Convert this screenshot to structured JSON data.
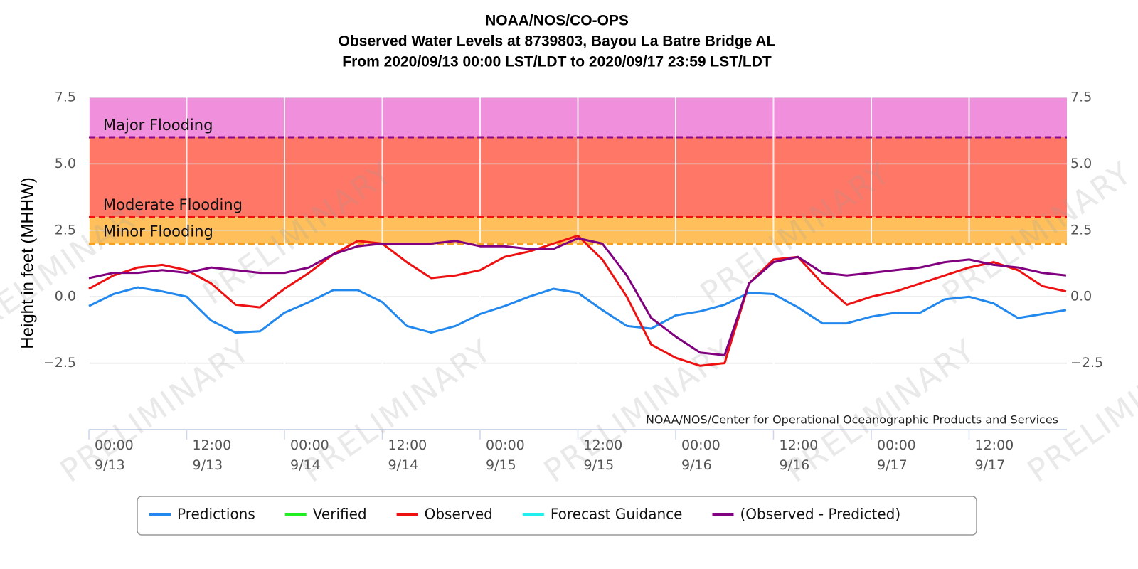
{
  "chart_data": {
    "type": "line",
    "title": [
      "NOAA/NOS/CO-OPS",
      "Observed Water Levels at 8739803, Bayou La Batre Bridge AL",
      "From 2020/09/13 00:00 LST/LDT to 2020/09/17 23:59 LST/LDT"
    ],
    "y_label": "Height in feet (MHHW)",
    "credit": "NOAA/NOS/Center for Operational Oceanographic Products and Services",
    "watermark": "PRELIMINARY",
    "xlim": [
      "2020-09-13 00:00",
      "2020-09-18 00:00"
    ],
    "xticks": [
      {
        "value": "2020-09-13 00:00",
        "label": "00:00 9/13"
      },
      {
        "value": "2020-09-13 12:00",
        "label": "12:00 9/13"
      },
      {
        "value": "2020-09-14 00:00",
        "label": "00:00 9/14"
      },
      {
        "value": "2020-09-14 12:00",
        "label": "12:00 9/14"
      },
      {
        "value": "2020-09-15 00:00",
        "label": "00:00 9/15"
      },
      {
        "value": "2020-09-15 12:00",
        "label": "12:00 9/15"
      },
      {
        "value": "2020-09-16 00:00",
        "label": "00:00 9/16"
      },
      {
        "value": "2020-09-16 12:00",
        "label": "12:00 9/16"
      },
      {
        "value": "2020-09-17 00:00",
        "label": "00:00 9/17"
      },
      {
        "value": "2020-09-17 12:00",
        "label": "12:00 9/17"
      }
    ],
    "ylim": [
      -5,
      7.5
    ],
    "yticks": [
      7.5,
      {
        "value": 5,
        "label": "5.0"
      },
      2.5,
      {
        "value": 0,
        "label": "0.0"
      },
      {
        "value": -2.5,
        "label": "−2.5"
      }
    ],
    "grid": true,
    "thresholds": [
      {
        "label": "Major Flooding",
        "value": 6,
        "color": "#8b0a8b",
        "fill": "#f08fdc"
      },
      {
        "label": "Moderate Flooding",
        "value": 3,
        "color": "#f01010",
        "fill": "#ff7766"
      },
      {
        "label": "Minor Flooding",
        "value": 2,
        "color": "#f5a020",
        "fill": "#ffc05c"
      }
    ],
    "x": [
      "2020-09-13 00:00",
      "2020-09-13 03:00",
      "2020-09-13 06:00",
      "2020-09-13 09:00",
      "2020-09-13 12:00",
      "2020-09-13 15:00",
      "2020-09-13 18:00",
      "2020-09-13 21:00",
      "2020-09-14 00:00",
      "2020-09-14 03:00",
      "2020-09-14 06:00",
      "2020-09-14 09:00",
      "2020-09-14 12:00",
      "2020-09-14 15:00",
      "2020-09-14 18:00",
      "2020-09-14 21:00",
      "2020-09-15 00:00",
      "2020-09-15 03:00",
      "2020-09-15 06:00",
      "2020-09-15 09:00",
      "2020-09-15 12:00",
      "2020-09-15 15:00",
      "2020-09-15 18:00",
      "2020-09-15 21:00",
      "2020-09-16 00:00",
      "2020-09-16 03:00",
      "2020-09-16 06:00",
      "2020-09-16 09:00",
      "2020-09-16 12:00",
      "2020-09-16 15:00",
      "2020-09-16 18:00",
      "2020-09-16 21:00",
      "2020-09-17 00:00",
      "2020-09-17 03:00",
      "2020-09-17 06:00",
      "2020-09-17 09:00",
      "2020-09-17 12:00",
      "2020-09-17 15:00",
      "2020-09-17 18:00",
      "2020-09-17 21:00",
      "2020-09-17 23:54"
    ],
    "series": [
      {
        "name": "Predictions",
        "color": "#2288ee",
        "values": [
          -0.35,
          0.1,
          0.35,
          0.2,
          0.0,
          -0.9,
          -1.35,
          -1.3,
          -0.6,
          -0.2,
          0.25,
          0.25,
          -0.2,
          -1.1,
          -1.35,
          -1.1,
          -0.65,
          -0.35,
          0.0,
          0.3,
          0.15,
          -0.5,
          -1.1,
          -1.2,
          -0.7,
          -0.55,
          -0.3,
          0.15,
          0.1,
          -0.4,
          -1.0,
          -1.0,
          -0.75,
          -0.6,
          -0.6,
          -0.1,
          0.0,
          -0.25,
          -0.8,
          -0.65,
          -0.5
        ]
      },
      {
        "name": "Verified",
        "color": "#22ee22",
        "values": [
          null,
          null,
          null,
          null,
          null,
          null,
          null,
          null,
          null,
          null,
          null,
          null,
          null,
          null,
          null,
          null,
          null,
          null,
          null,
          null,
          null,
          null,
          null,
          null,
          null,
          null,
          null,
          null,
          null,
          null,
          null,
          null,
          null,
          null,
          null,
          null,
          null,
          null,
          null,
          null,
          null
        ]
      },
      {
        "name": "Observed",
        "color": "#ee1111",
        "values": [
          0.3,
          0.8,
          1.1,
          1.2,
          1.0,
          0.5,
          -0.3,
          -0.4,
          0.3,
          0.9,
          1.6,
          2.1,
          2.0,
          1.3,
          0.7,
          0.8,
          1.0,
          1.5,
          1.7,
          2.0,
          2.3,
          1.4,
          0.0,
          -1.8,
          -2.3,
          -2.6,
          -2.5,
          0.5,
          1.4,
          1.5,
          0.5,
          -0.3,
          0.0,
          0.2,
          0.5,
          0.8,
          1.1,
          1.3,
          1.0,
          0.4,
          0.2
        ]
      },
      {
        "name": "Forecast Guidance",
        "color": "#22eeee",
        "values": [
          null,
          null,
          null,
          null,
          null,
          null,
          null,
          null,
          null,
          null,
          null,
          null,
          null,
          null,
          null,
          null,
          null,
          null,
          null,
          null,
          null,
          null,
          null,
          null,
          null,
          null,
          null,
          null,
          null,
          null,
          null,
          null,
          null,
          null,
          null,
          null,
          null,
          null,
          null,
          null,
          null
        ]
      },
      {
        "name": "(Observed - Predicted)",
        "color": "#800080",
        "values": [
          0.7,
          0.9,
          0.9,
          1.0,
          0.9,
          1.1,
          1.0,
          0.9,
          0.9,
          1.1,
          1.6,
          1.9,
          2.0,
          2.0,
          2.0,
          2.1,
          1.9,
          1.9,
          1.8,
          1.8,
          2.2,
          2.0,
          0.8,
          -0.8,
          -1.5,
          -2.1,
          -2.2,
          0.5,
          1.3,
          1.5,
          0.9,
          0.8,
          0.9,
          1.0,
          1.1,
          1.3,
          1.4,
          1.2,
          1.1,
          0.9,
          0.8
        ]
      }
    ]
  }
}
